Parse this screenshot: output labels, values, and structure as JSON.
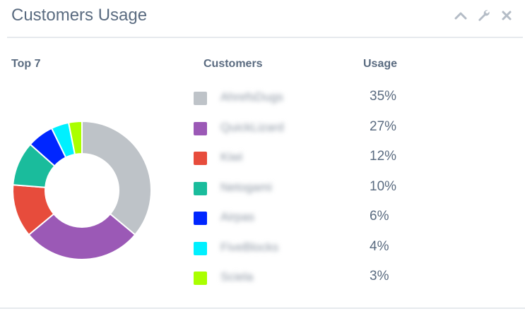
{
  "widget": {
    "title": "Customers Usage"
  },
  "header_icons": [
    "chevron-up-icon",
    "wrench-icon",
    "close-icon"
  ],
  "columns": {
    "top": "Top 7",
    "customers": "Customers",
    "usage": "Usage"
  },
  "customers": [
    {
      "name": "AhrefsDugs",
      "usage": "35%",
      "value": 35,
      "color": "#bec3c8"
    },
    {
      "name": "QuickLizard",
      "usage": "27%",
      "value": 27,
      "color": "#9b59b6"
    },
    {
      "name": "Kiwi",
      "usage": "12%",
      "value": 12,
      "color": "#e74c3c"
    },
    {
      "name": "Netogami",
      "usage": "10%",
      "value": 10,
      "color": "#1abc9c"
    },
    {
      "name": "Airpas",
      "usage": "6%",
      "value": 6,
      "color": "#0026ff"
    },
    {
      "name": "FiveBlocks",
      "usage": "4%",
      "value": 4,
      "color": "#00f0ff"
    },
    {
      "name": "Sciela",
      "usage": "3%",
      "value": 3,
      "color": "#aaff00"
    }
  ]
}
